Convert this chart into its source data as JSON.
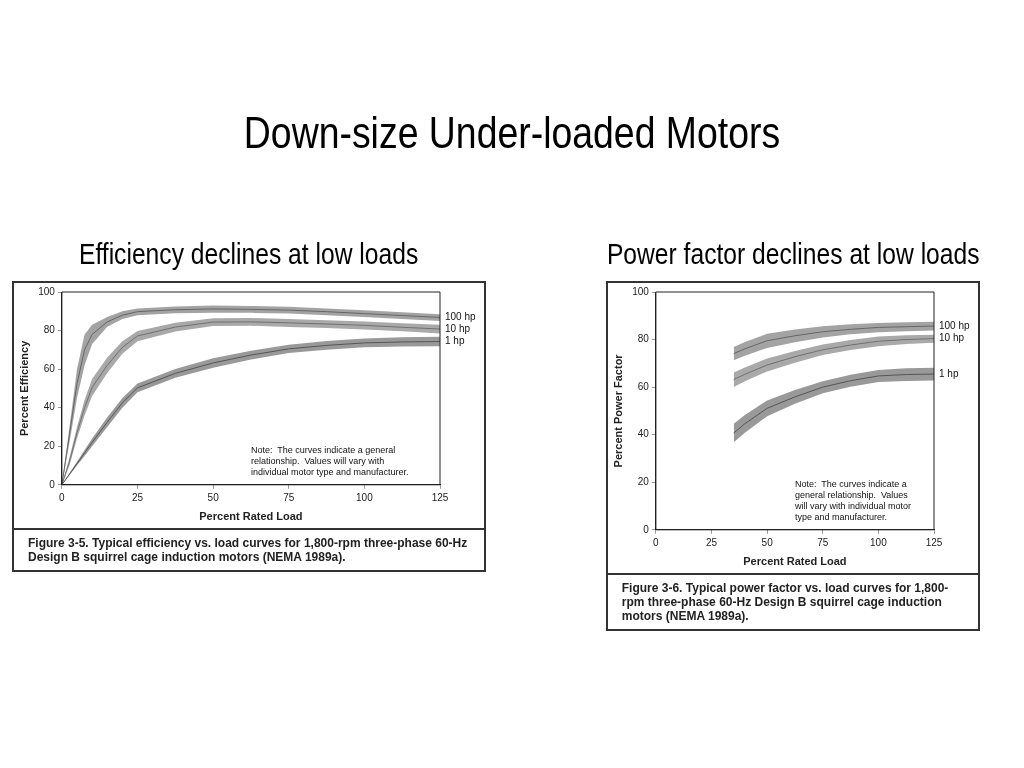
{
  "chart_data": [
    {
      "type": "line",
      "title": "Down-size Under-loaded Motors",
      "subtitle": "Efficiency declines at low loads",
      "xlabel": "Percent Rated Load",
      "ylabel": "Percent Efficiency",
      "xlim": [
        0,
        125
      ],
      "xticks": [
        0,
        25,
        50,
        75,
        100,
        125
      ],
      "ylim": [
        0,
        100
      ],
      "yticks": [
        0,
        20,
        40,
        60,
        80,
        100
      ],
      "grid": false,
      "legend": false,
      "x": [
        0,
        2.5,
        5,
        7.5,
        10,
        15,
        20,
        25,
        37.5,
        50,
        62.5,
        75,
        87.5,
        100,
        112.5,
        125
      ],
      "annotations": [
        "Note:  The curves indicate a general relationship.  Values will vary with individual motor type and manufacturer.",
        "Figure 3-5.  Typical efficiency vs. load curves for 1,800-rpm three-phase 60-Hz Design B squirrel cage induction motors (NEMA 1989a)."
      ],
      "series": [
        {
          "name": "100 hp",
          "color": "#666666",
          "values": [
            0,
            26,
            52.5,
            70,
            78,
            84.5,
            88,
            89.8,
            90.8,
            91.2,
            91,
            90.6,
            89.8,
            88.8,
            87.8,
            86.8
          ],
          "lower": [
            0,
            22,
            45,
            62,
            73,
            82,
            86,
            88,
            89,
            89.3,
            89.2,
            88.8,
            88,
            87,
            86,
            85
          ],
          "upper": [
            0,
            30,
            60,
            78,
            83,
            87,
            90,
            91.5,
            92.5,
            93,
            92.8,
            92.3,
            91.5,
            90.5,
            89.5,
            88.5
          ]
        },
        {
          "name": "10 hp",
          "color": "#707070",
          "values": [
            0,
            12,
            27,
            40,
            50.5,
            62,
            71.3,
            77.2,
            81.8,
            84.4,
            84.5,
            84,
            83.4,
            82.7,
            81.7,
            80.8
          ],
          "lower": [
            0,
            10,
            24,
            36,
            46,
            58,
            68,
            74.5,
            79.5,
            82.4,
            82.5,
            81.9,
            81.3,
            80.6,
            79.6,
            78.5
          ],
          "upper": [
            0,
            14,
            30,
            44,
            55,
            66,
            74.5,
            79.8,
            84,
            86.4,
            86.5,
            86,
            85.4,
            84.7,
            83.8,
            83
          ]
        },
        {
          "name": "1 hp",
          "color": "#555555",
          "values": [
            0,
            5.5,
            11,
            16.5,
            22,
            32.5,
            42.5,
            50.3,
            57.8,
            63.2,
            67.3,
            70.5,
            72.3,
            73.6,
            74.1,
            74.3
          ],
          "lower": [
            0,
            5,
            10,
            15,
            20,
            30,
            40,
            48,
            55.5,
            60.7,
            65,
            68.3,
            70,
            71.3,
            71.7,
            71.8
          ],
          "upper": [
            0,
            6,
            12,
            18,
            24,
            35,
            45,
            52.5,
            60,
            65.7,
            69.5,
            72.7,
            74.6,
            75.9,
            76.5,
            76.8
          ]
        }
      ]
    },
    {
      "type": "line",
      "subtitle": "Power factor declines at low loads",
      "xlabel": "Percent Rated Load",
      "ylabel": "Percent Power Factor",
      "xlim": [
        0,
        125
      ],
      "xticks": [
        0,
        25,
        50,
        75,
        100,
        125
      ],
      "ylim": [
        0,
        100
      ],
      "yticks": [
        0,
        20,
        40,
        60,
        80,
        100
      ],
      "grid": false,
      "legend": false,
      "x": [
        35,
        40,
        50,
        62.5,
        75,
        87.5,
        100,
        112.5,
        125
      ],
      "annotations": [
        "Note:  The curves indicate a general relationship.  Values will vary with individual motor type and manufacturer.",
        "Figure 3-6.  Typical power factor vs. load curves for 1,800-rpm three-phase 60-Hz Design B squirrel cage induction motors (NEMA 1989a)."
      ],
      "series": [
        {
          "name": "100 hp",
          "color": "#666666",
          "values": [
            74.1,
            76.1,
            79.5,
            81.6,
            83.3,
            84.3,
            85.1,
            85.4,
            85.7
          ],
          "lower": [
            71.3,
            73.2,
            76.5,
            78.9,
            80.9,
            82.2,
            83.1,
            83.5,
            83.8
          ],
          "upper": [
            76.9,
            79,
            82.4,
            84.2,
            85.6,
            86.4,
            87,
            87.3,
            87.5
          ]
        },
        {
          "name": "10 hp",
          "color": "#707070",
          "values": [
            63.2,
            65.4,
            69.3,
            72.8,
            75.7,
            77.7,
            79.3,
            80,
            80.4
          ],
          "lower": [
            60.1,
            62.5,
            66.6,
            70.3,
            73.5,
            75.6,
            77.2,
            78.1,
            78.7
          ],
          "upper": [
            66.2,
            68.3,
            72,
            75.2,
            77.9,
            79.8,
            81.3,
            81.8,
            82
          ]
        },
        {
          "name": "1 hp",
          "color": "#555555",
          "values": [
            40.7,
            44.6,
            51.1,
            55.9,
            60,
            62.7,
            64.7,
            65.3,
            65.5
          ],
          "lower": [
            36.8,
            40.8,
            47.8,
            53,
            57.4,
            60.2,
            62.2,
            62.6,
            62.8
          ],
          "upper": [
            44.6,
            48.3,
            54.4,
            58.8,
            62.5,
            65.2,
            67.2,
            67.9,
            68.1
          ]
        }
      ]
    }
  ]
}
